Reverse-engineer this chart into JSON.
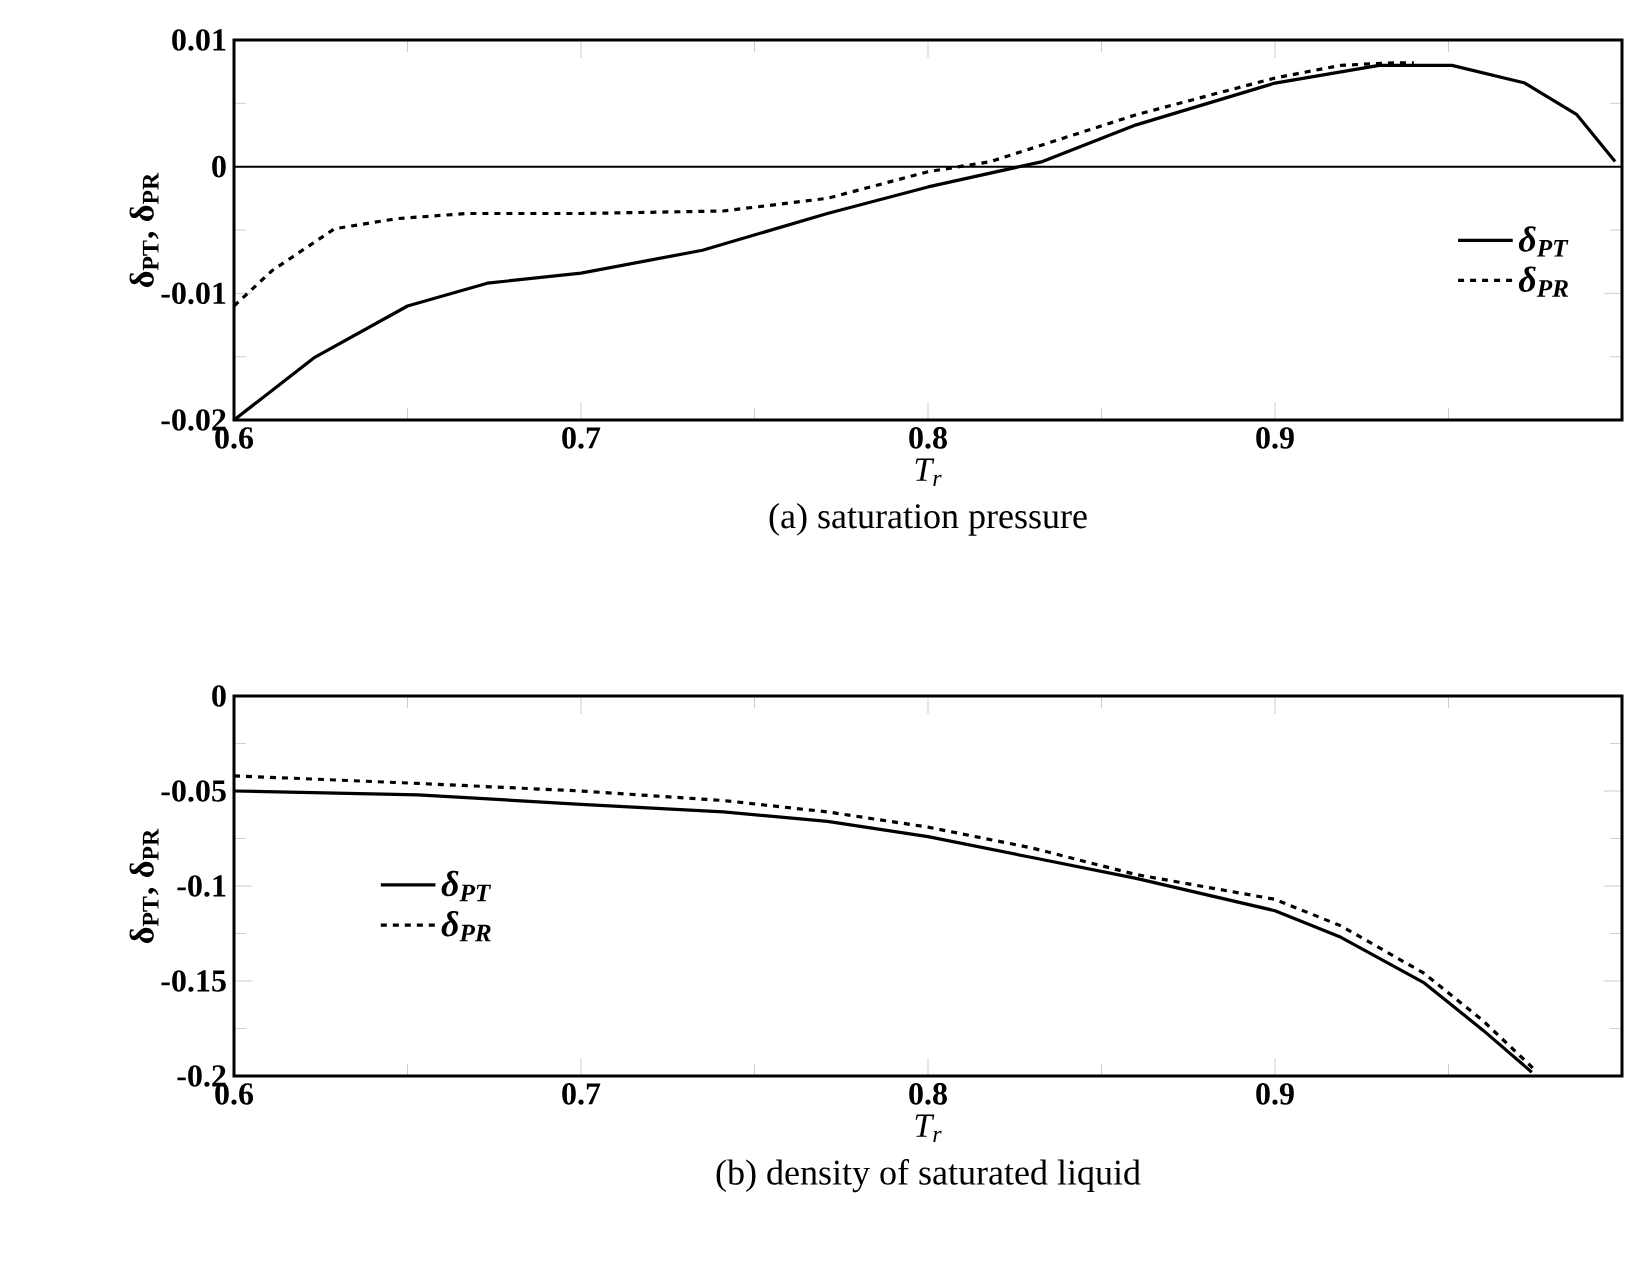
{
  "chart_data": [
    {
      "type": "line",
      "title": "(a) saturation pressure",
      "xlabel": "T$_{r}$",
      "ylabel": "δ$_{PT}$, δ$_{PR}$",
      "xlim": [
        0.6,
        1.0
      ],
      "ylim": [
        -0.02,
        0.01
      ],
      "xticks": [
        0.6,
        0.7,
        0.8,
        0.9,
        {
          "value": 1.0,
          "label": null
        }
      ],
      "yticks": [
        -0.02,
        -0.01,
        0,
        0.01
      ],
      "legend": "right",
      "grid": false,
      "ref_lines": [
        {
          "axis": "y",
          "value": 0
        }
      ],
      "series": [
        {
          "name": "δ$_{PT}$",
          "color": "#000000",
          "line_style": "solid",
          "x": [
            0.6,
            0.623,
            0.65,
            0.673,
            0.7,
            0.735,
            0.771,
            0.8,
            0.833,
            0.86,
            0.9,
            0.93,
            0.951,
            0.972,
            0.987,
            0.998
          ],
          "values": [
            -0.02,
            -0.0151,
            -0.011,
            -0.0092,
            -0.0084,
            -0.0066,
            -0.0037,
            -0.0016,
            0.0004,
            0.0033,
            0.0066,
            0.008,
            0.008,
            0.0066,
            0.0041,
            0.0004
          ]
        },
        {
          "name": "δ$_{PR}$",
          "color": "#000000",
          "line_style": "dashed",
          "x": [
            0.6,
            0.611,
            0.629,
            0.647,
            0.667,
            0.7,
            0.741,
            0.771,
            0.8,
            0.818,
            0.86,
            0.9,
            0.919,
            0.934,
            0.94
          ],
          "values": [
            -0.011,
            -0.0082,
            -0.0049,
            -0.0041,
            -0.0037,
            -0.0037,
            -0.0035,
            -0.0025,
            -0.0004,
            0.0004,
            0.0041,
            0.007,
            0.008,
            0.0082,
            0.0082
          ]
        }
      ]
    },
    {
      "type": "line",
      "title": "(b) density of saturated liquid",
      "xlabel": "T$_{r}$",
      "ylabel": "δ$_{PT}$, δ$_{PR}$",
      "xlim": [
        0.6,
        1.0
      ],
      "ylim": [
        -0.2,
        0
      ],
      "xticks": [
        0.6,
        0.7,
        0.8,
        0.9,
        {
          "value": 1.0,
          "label": null
        }
      ],
      "yticks": [
        -0.2,
        -0.15,
        -0.1,
        -0.05,
        0
      ],
      "legend": "left",
      "grid": false,
      "series": [
        {
          "name": "δ$_{PT}$",
          "color": "#000000",
          "line_style": "solid",
          "x": [
            0.6,
            0.653,
            0.7,
            0.741,
            0.771,
            0.8,
            0.83,
            0.86,
            0.9,
            0.919,
            0.943,
            0.96,
            0.974
          ],
          "values": [
            -0.05,
            -0.052,
            -0.057,
            -0.061,
            -0.066,
            -0.074,
            -0.085,
            -0.096,
            -0.113,
            -0.127,
            -0.151,
            -0.176,
            -0.198
          ]
        },
        {
          "name": "δ$_{PR}$",
          "color": "#000000",
          "line_style": "dashed",
          "x": [
            0.6,
            0.653,
            0.7,
            0.741,
            0.771,
            0.8,
            0.83,
            0.86,
            0.9,
            0.919,
            0.943,
            0.96,
            0.975
          ],
          "values": [
            -0.042,
            -0.046,
            -0.05,
            -0.055,
            -0.061,
            -0.069,
            -0.08,
            -0.094,
            -0.107,
            -0.121,
            -0.146,
            -0.171,
            -0.197
          ]
        }
      ]
    }
  ]
}
